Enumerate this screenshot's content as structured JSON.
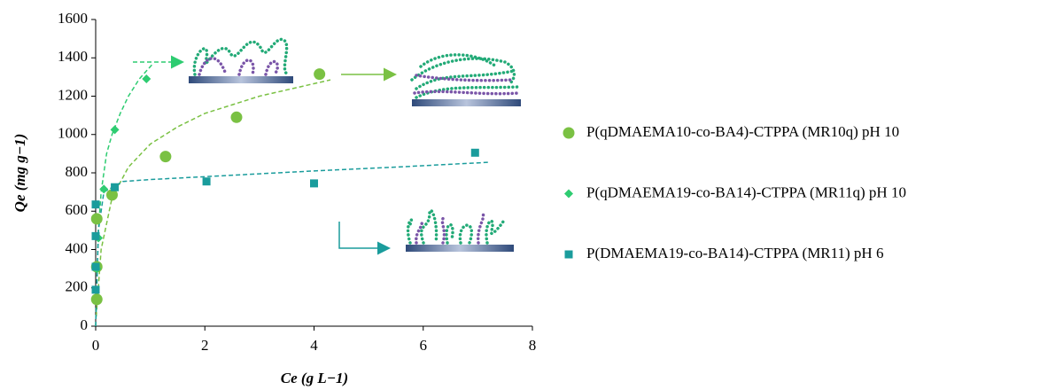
{
  "chart_data": {
    "type": "scatter",
    "x_label": "Ce (g L−1)",
    "y_label": "Qe (mg g−1)",
    "xlim": [
      0,
      8
    ],
    "xticks": [
      0,
      2,
      4,
      6,
      8
    ],
    "ylim": [
      0,
      1600
    ],
    "yticks": [
      0,
      200,
      400,
      600,
      800,
      1000,
      1200,
      1400,
      1600
    ],
    "grid": false,
    "series": [
      {
        "name": "P(qDMAEMA10-co-BA4)-CTPPA (MR10q) pH 10",
        "color": "#7ac143",
        "marker": "circle",
        "x": [
          0.02,
          0.02,
          0.02,
          0.3,
          1.28,
          2.58,
          4.1
        ],
        "values": [
          140,
          310,
          560,
          685,
          885,
          1090,
          1315
        ]
      },
      {
        "name": "P(qDMAEMA19-co-BA14)-CTPPA (MR11q) pH 10",
        "color": "#2ecc71",
        "marker": "diamond",
        "x": [
          0.02,
          0.05,
          0.15,
          0.35,
          0.93
        ],
        "values": [
          300,
          460,
          715,
          1025,
          1290
        ]
      },
      {
        "name": "P(DMAEMA19-co-BA14)-CTPPA (MR11) pH 6",
        "color": "#1a9c9c",
        "marker": "square",
        "x": [
          0,
          0,
          0,
          0,
          0.35,
          2.03,
          4,
          6.95
        ],
        "values": [
          190,
          310,
          470,
          635,
          725,
          755,
          745,
          905
        ]
      }
    ],
    "fits": [
      {
        "color": "#7ac143",
        "x": [
          0.01,
          0.1,
          0.3,
          0.6,
          1,
          1.5,
          2,
          3,
          4.3
        ],
        "values": [
          50,
          400,
          670,
          830,
          950,
          1040,
          1110,
          1200,
          1285
        ]
      },
      {
        "color": "#2ecc71",
        "x": [
          0,
          0.05,
          0.1,
          0.2,
          0.3,
          0.45,
          0.6,
          0.8,
          1.05
        ],
        "values": [
          0,
          500,
          700,
          900,
          1000,
          1110,
          1200,
          1290,
          1370
        ]
      },
      {
        "color": "#1a9c9c",
        "x": [
          0,
          0.05,
          0.15,
          0.5,
          1,
          2,
          4,
          5.5,
          7.2
        ],
        "values": [
          0,
          500,
          700,
          755,
          765,
          780,
          810,
          830,
          855
        ]
      }
    ]
  }
}
